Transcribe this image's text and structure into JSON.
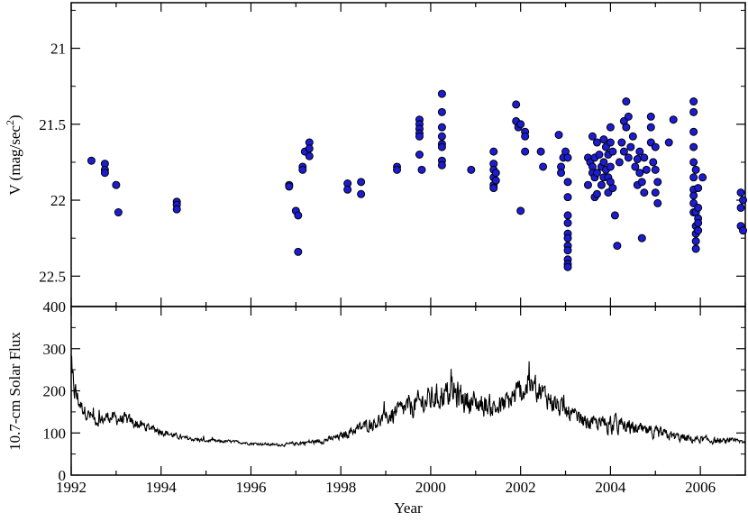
{
  "colors": {
    "background": "#ffffff",
    "axis": "#000000",
    "point_fill": "#1c1cd4",
    "point_stroke": "#000000",
    "line": "#000000"
  },
  "chart_data": [
    {
      "type": "scatter",
      "panel": "top",
      "ylabel": "V (mag/sec",
      "ylabel_superscript": "2",
      "ylabel_suffix": ")",
      "xlim": [
        1992.0,
        2007.0
      ],
      "ylim": [
        22.7,
        20.7
      ],
      "y_inverted": true,
      "yticks": [
        21,
        21.5,
        22,
        22.5
      ],
      "ytick_labels": [
        "21",
        "21.5",
        "22",
        "22.5"
      ],
      "grid": false,
      "x": [
        1992.45,
        1992.75,
        1992.75,
        1992.75,
        1993.0,
        1993.05,
        1994.35,
        1994.35,
        1994.35,
        1996.85,
        1996.85,
        1997.0,
        1997.05,
        1997.05,
        1997.15,
        1997.15,
        1997.2,
        1997.3,
        1997.3,
        1997.3,
        1998.15,
        1998.15,
        1998.45,
        1998.45,
        1999.25,
        1999.25,
        1999.75,
        1999.75,
        1999.75,
        1999.75,
        1999.75,
        1999.75,
        1999.8,
        2000.25,
        2000.25,
        2000.25,
        2000.25,
        2000.25,
        2000.25,
        2000.25,
        2000.25,
        2000.9,
        2001.4,
        2001.4,
        2001.4,
        2001.4,
        2001.4,
        2001.4,
        2001.45,
        2001.45,
        2001.9,
        2001.9,
        2001.95,
        2002.0,
        2002.0,
        2002.1,
        2002.1,
        2002.1,
        2002.45,
        2002.5,
        2002.85,
        2002.9,
        2002.9,
        2002.95,
        2003.0,
        2003.05,
        2003.05,
        2003.05,
        2003.05,
        2003.05,
        2003.05,
        2003.05,
        2003.05,
        2003.05,
        2003.05,
        2003.05,
        2003.05,
        2003.5,
        2003.5,
        2003.55,
        2003.6,
        2003.6,
        2003.6,
        2003.65,
        2003.65,
        2003.65,
        2003.7,
        2003.7,
        2003.7,
        2003.75,
        2003.8,
        2003.8,
        2003.85,
        2003.85,
        2003.85,
        2003.9,
        2003.9,
        2003.95,
        2003.95,
        2003.95,
        2004.0,
        2004.0,
        2004.0,
        2004.0,
        2004.05,
        2004.05,
        2004.1,
        2004.15,
        2004.2,
        2004.25,
        2004.3,
        2004.3,
        2004.35,
        2004.35,
        2004.4,
        2004.4,
        2004.45,
        2004.5,
        2004.55,
        2004.6,
        2004.6,
        2004.65,
        2004.65,
        2004.7,
        2004.7,
        2004.75,
        2004.75,
        2004.8,
        2004.9,
        2004.9,
        2004.9,
        2004.95,
        2005.0,
        2005.0,
        2005.0,
        2005.05,
        2005.05,
        2005.3,
        2005.4,
        2005.85,
        2005.85,
        2005.85,
        2005.85,
        2005.85,
        2005.85,
        2005.85,
        2005.85,
        2005.85,
        2005.85,
        2005.9,
        2005.9,
        2005.9,
        2005.9,
        2005.9,
        2005.9,
        2005.95,
        2005.95,
        2005.95,
        2005.95,
        2005.95,
        2006.05,
        2006.9,
        2006.9,
        2006.9,
        2006.95,
        2006.95
      ],
      "y": [
        21.74,
        21.76,
        21.8,
        21.82,
        21.9,
        22.08,
        22.01,
        22.03,
        22.06,
        21.9,
        21.91,
        22.07,
        22.1,
        22.34,
        21.78,
        21.8,
        21.68,
        21.62,
        21.66,
        21.71,
        21.89,
        21.93,
        21.88,
        21.96,
        21.78,
        21.8,
        21.47,
        21.5,
        21.53,
        21.56,
        21.58,
        21.7,
        21.8,
        21.3,
        21.42,
        21.52,
        21.58,
        21.63,
        21.65,
        21.74,
        21.77,
        21.8,
        21.68,
        21.76,
        21.8,
        21.85,
        21.9,
        21.92,
        21.82,
        21.87,
        21.37,
        21.48,
        21.52,
        21.5,
        22.07,
        21.55,
        21.58,
        21.68,
        21.68,
        21.78,
        21.57,
        21.78,
        21.82,
        21.72,
        21.68,
        21.72,
        21.88,
        21.98,
        22.1,
        22.15,
        22.22,
        22.25,
        22.3,
        22.33,
        22.39,
        22.42,
        22.44,
        21.72,
        21.9,
        21.75,
        21.58,
        21.78,
        21.82,
        21.72,
        21.85,
        21.98,
        21.62,
        21.82,
        21.96,
        21.7,
        21.78,
        21.9,
        21.6,
        21.75,
        21.85,
        21.65,
        21.8,
        21.7,
        21.85,
        21.95,
        21.52,
        21.62,
        21.78,
        21.88,
        21.68,
        21.92,
        22.1,
        22.3,
        21.75,
        21.62,
        21.48,
        21.68,
        21.35,
        21.52,
        21.45,
        21.72,
        21.65,
        21.58,
        21.78,
        21.73,
        21.9,
        21.68,
        21.82,
        21.88,
        22.25,
        21.72,
        21.95,
        21.8,
        21.45,
        21.52,
        21.62,
        21.75,
        21.65,
        21.8,
        21.95,
        21.88,
        22.02,
        21.62,
        21.47,
        21.35,
        21.42,
        21.55,
        21.65,
        21.75,
        21.85,
        21.93,
        21.97,
        22.02,
        22.08,
        21.8,
        22.08,
        22.17,
        22.22,
        22.27,
        22.32,
        21.92,
        22.05,
        22.12,
        22.15,
        22.2,
        21.85,
        21.95,
        22.05,
        22.17,
        22.0,
        22.2
      ],
      "point_radius": 4
    },
    {
      "type": "line",
      "panel": "bottom",
      "xlabel": "Year",
      "ylabel": "10.7-cm Solar Flux",
      "xlim": [
        1992.0,
        2007.0
      ],
      "ylim": [
        0,
        400
      ],
      "xticks": [
        1992,
        1994,
        1996,
        1998,
        2000,
        2002,
        2004,
        2006
      ],
      "xtick_labels": [
        "1992",
        "1994",
        "1996",
        "1998",
        "2000",
        "2002",
        "2004",
        "2006"
      ],
      "yticks": [
        0,
        100,
        200,
        300,
        400
      ],
      "ytick_labels": [
        "0",
        "100",
        "200",
        "300",
        "400"
      ],
      "grid": false,
      "series": [
        {
          "x": [
            1992.0,
            1992.08,
            1992.17,
            1992.25,
            1992.33,
            1992.42,
            1992.5,
            1992.58,
            1992.67,
            1992.75,
            1992.83,
            1992.92,
            1993.0,
            1993.25,
            1993.5,
            1993.75,
            1994.0,
            1994.25,
            1994.5,
            1994.75,
            1995.0,
            1995.25,
            1995.5,
            1995.75,
            1996.0,
            1996.25,
            1996.5,
            1996.75,
            1997.0,
            1997.25,
            1997.5,
            1997.75,
            1998.0,
            1998.25,
            1998.5,
            1998.75,
            1999.0,
            1999.25,
            1999.5,
            1999.75,
            2000.0,
            2000.25,
            2000.5,
            2000.75,
            2001.0,
            2001.25,
            2001.5,
            2001.75,
            2002.0,
            2002.25,
            2002.5,
            2002.75,
            2003.0,
            2003.25,
            2003.5,
            2003.75,
            2004.0,
            2004.25,
            2004.5,
            2004.75,
            2005.0,
            2005.25,
            2005.5,
            2005.75,
            2006.0,
            2006.25,
            2006.5,
            2006.75,
            2007.0
          ],
          "y": [
            240,
            200,
            175,
            160,
            150,
            140,
            135,
            130,
            130,
            135,
            140,
            135,
            135,
            130,
            120,
            112,
            105,
            95,
            88,
            85,
            82,
            80,
            80,
            78,
            75,
            74,
            72,
            72,
            75,
            78,
            80,
            85,
            92,
            105,
            115,
            125,
            135,
            150,
            160,
            170,
            180,
            190,
            195,
            180,
            170,
            165,
            160,
            175,
            200,
            210,
            195,
            170,
            150,
            135,
            125,
            120,
            125,
            115,
            110,
            105,
            100,
            95,
            90,
            85,
            85,
            82,
            80,
            80,
            80
          ],
          "noise_amplitude": [
            40,
            50,
            30,
            25,
            25,
            25,
            22,
            22,
            22,
            22,
            22,
            22,
            25,
            22,
            20,
            15,
            15,
            10,
            8,
            8,
            6,
            6,
            5,
            5,
            5,
            5,
            5,
            5,
            8,
            8,
            10,
            10,
            14,
            18,
            22,
            25,
            30,
            35,
            40,
            45,
            45,
            50,
            55,
            50,
            45,
            40,
            40,
            45,
            50,
            45,
            40,
            40,
            35,
            30,
            25,
            28,
            40,
            30,
            25,
            22,
            22,
            20,
            18,
            16,
            14,
            12,
            10,
            10,
            10
          ]
        }
      ]
    }
  ]
}
